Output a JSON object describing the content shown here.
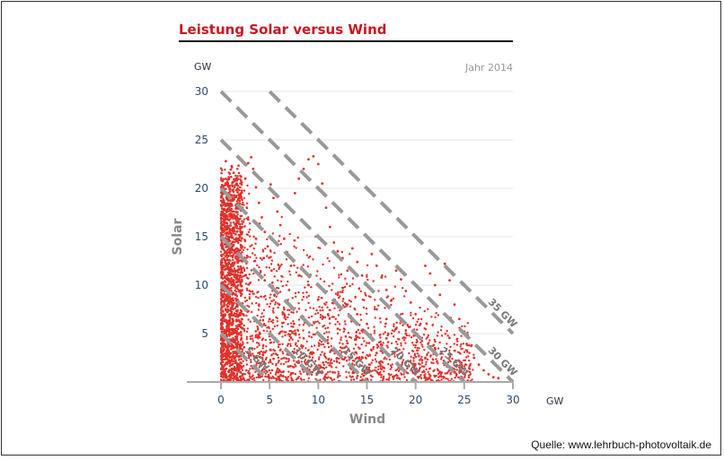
{
  "chart_data": {
    "type": "scatter",
    "title": "Leistung Solar versus Wind",
    "subtitle": "Jahr 2014",
    "xlabel": "Wind",
    "ylabel": "Solar",
    "x_unit": "GW",
    "y_unit": "GW",
    "xlim": [
      0,
      30
    ],
    "ylim": [
      0,
      30
    ],
    "x_ticks": [
      "0",
      "5",
      "10",
      "15",
      "20",
      "25",
      "30"
    ],
    "y_ticks": [
      "5",
      "10",
      "15",
      "20",
      "25",
      "30"
    ],
    "grid": "horizontal",
    "point_color": "#e0312b",
    "series": [
      {
        "points": [
          [
            0.2,
            0.5
          ],
          [
            0.4,
            1.2
          ],
          [
            0.6,
            2.0
          ],
          [
            0.8,
            3.1
          ],
          [
            1.0,
            4.0
          ],
          [
            0.3,
            5.2
          ],
          [
            0.5,
            6.4
          ],
          [
            0.7,
            7.5
          ],
          [
            0.9,
            8.8
          ],
          [
            0.4,
            9.9
          ],
          [
            0.6,
            11.0
          ],
          [
            0.8,
            12.2
          ],
          [
            0.5,
            13.4
          ],
          [
            0.7,
            14.6
          ],
          [
            0.9,
            15.8
          ],
          [
            0.6,
            17.0
          ],
          [
            0.8,
            18.2
          ],
          [
            1.0,
            19.3
          ],
          [
            0.7,
            20.4
          ],
          [
            0.9,
            21.5
          ],
          [
            1.1,
            22.3
          ],
          [
            0.5,
            22.8
          ],
          [
            1.3,
            21.6
          ],
          [
            1.6,
            20.5
          ],
          [
            1.9,
            19.2
          ],
          [
            2.2,
            18.0
          ],
          [
            2.5,
            21.0
          ],
          [
            2.8,
            22.6
          ],
          [
            3.1,
            23.2
          ],
          [
            3.3,
            22.0
          ],
          [
            3.6,
            20.1
          ],
          [
            3.9,
            18.5
          ],
          [
            4.2,
            17.0
          ],
          [
            4.5,
            15.5
          ],
          [
            4.8,
            14.0
          ],
          [
            5.1,
            20.4
          ],
          [
            5.4,
            19.0
          ],
          [
            5.8,
            17.6
          ],
          [
            6.1,
            16.2
          ],
          [
            6.5,
            14.8
          ],
          [
            6.8,
            13.4
          ],
          [
            7.2,
            12.0
          ],
          [
            7.6,
            19.5
          ],
          [
            8.0,
            21.0
          ],
          [
            8.5,
            22.0
          ],
          [
            9.0,
            23.0
          ],
          [
            9.5,
            23.3
          ],
          [
            10.0,
            22.5
          ],
          [
            10.4,
            20.5
          ],
          [
            10.8,
            18.0
          ],
          [
            11.2,
            16.0
          ],
          [
            11.6,
            14.4
          ],
          [
            12.0,
            13.5
          ],
          [
            12.5,
            12.8
          ],
          [
            13.0,
            11.5
          ],
          [
            13.5,
            13.8
          ],
          [
            14.0,
            12.4
          ],
          [
            14.5,
            11.0
          ],
          [
            15.0,
            10.0
          ],
          [
            15.5,
            13.2
          ],
          [
            16.0,
            12.0
          ],
          [
            16.5,
            10.8
          ],
          [
            17.0,
            9.5
          ],
          [
            17.5,
            8.4
          ],
          [
            18.0,
            11.5
          ],
          [
            18.5,
            10.6
          ],
          [
            19.0,
            9.4
          ],
          [
            19.5,
            8.2
          ],
          [
            20.0,
            7.0
          ],
          [
            20.5,
            6.0
          ],
          [
            21.0,
            12.0
          ],
          [
            21.5,
            11.2
          ],
          [
            22.0,
            10.0
          ],
          [
            22.5,
            9.0
          ],
          [
            23.0,
            12.2
          ],
          [
            23.5,
            10.5
          ],
          [
            24.0,
            8.0
          ],
          [
            24.5,
            6.5
          ],
          [
            25.0,
            5.2
          ],
          [
            25.5,
            3.8
          ],
          [
            26.0,
            2.5
          ],
          [
            26.5,
            1.8
          ],
          [
            27.0,
            1.2
          ],
          [
            27.5,
            0.8
          ],
          [
            28.0,
            0.5
          ],
          [
            28.5,
            0.4
          ],
          [
            2.0,
            2.0
          ],
          [
            3.0,
            3.5
          ],
          [
            4.0,
            5.0
          ],
          [
            5.0,
            6.5
          ],
          [
            6.0,
            8.0
          ],
          [
            7.0,
            9.5
          ],
          [
            8.0,
            11.0
          ],
          [
            9.0,
            10.0
          ],
          [
            10.0,
            8.5
          ],
          [
            11.0,
            7.0
          ],
          [
            12.0,
            5.5
          ],
          [
            13.0,
            4.0
          ],
          [
            14.0,
            2.5
          ],
          [
            15.0,
            1.5
          ],
          [
            16.0,
            3.0
          ],
          [
            17.0,
            4.5
          ],
          [
            18.0,
            3.5
          ],
          [
            19.0,
            2.0
          ],
          [
            20.0,
            1.0
          ],
          [
            21.0,
            2.5
          ],
          [
            22.0,
            3.5
          ],
          [
            23.0,
            2.0
          ],
          [
            24.0,
            1.0
          ],
          [
            1.5,
            9.0
          ],
          [
            2.5,
            11.0
          ],
          [
            3.5,
            12.5
          ],
          [
            4.5,
            10.5
          ],
          [
            5.5,
            9.0
          ],
          [
            6.5,
            7.5
          ],
          [
            7.5,
            6.0
          ],
          [
            8.5,
            4.5
          ],
          [
            9.5,
            3.0
          ],
          [
            10.5,
            2.0
          ],
          [
            11.5,
            1.0
          ],
          [
            1.2,
            14.0
          ],
          [
            2.0,
            15.5
          ],
          [
            2.8,
            16.8
          ],
          [
            3.6,
            14.8
          ],
          [
            4.4,
            12.8
          ],
          [
            5.2,
            11.5
          ],
          [
            6.0,
            5.0
          ],
          [
            7.0,
            3.0
          ],
          [
            8.0,
            2.0
          ],
          [
            9.0,
            6.0
          ],
          [
            10.0,
            5.0
          ],
          [
            11.0,
            4.0
          ],
          [
            12.0,
            9.0
          ],
          [
            13.0,
            8.0
          ],
          [
            14.0,
            7.0
          ],
          [
            15.0,
            6.0
          ],
          [
            16.0,
            7.5
          ],
          [
            17.0,
            6.5
          ],
          [
            18.0,
            5.5
          ],
          [
            19.0,
            5.0
          ],
          [
            0.3,
            0.2
          ],
          [
            0.5,
            0.8
          ],
          [
            0.2,
            1.5
          ],
          [
            0.9,
            0.3
          ],
          [
            1.4,
            0.6
          ],
          [
            1.8,
            1.1
          ],
          [
            2.3,
            0.4
          ],
          [
            2.9,
            0.9
          ],
          [
            3.4,
            1.4
          ],
          [
            3.9,
            0.5
          ],
          [
            4.4,
            1.9
          ],
          [
            4.9,
            0.7
          ],
          [
            5.4,
            2.4
          ],
          [
            5.9,
            1.0
          ],
          [
            6.4,
            0.6
          ],
          [
            6.9,
            1.6
          ],
          [
            7.4,
            0.9
          ],
          [
            7.9,
            0.4
          ],
          [
            8.4,
            1.3
          ],
          [
            8.9,
            0.8
          ]
        ]
      }
    ],
    "iso_lines": [
      {
        "total": 5,
        "label": "5 GW"
      },
      {
        "total": 10,
        "label": "10 GW"
      },
      {
        "total": 15,
        "label": "15 GW"
      },
      {
        "total": 20,
        "label": "20 GW"
      },
      {
        "total": 25,
        "label": "25 GW"
      },
      {
        "total": 30,
        "label": "30 GW"
      },
      {
        "total": 35,
        "label": "35 GW"
      }
    ]
  },
  "source_text": "Quelle: www.lehrbuch-photovoltaik.de"
}
